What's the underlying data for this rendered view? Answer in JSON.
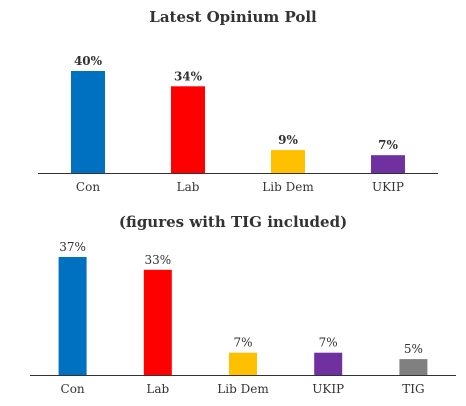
{
  "chart_data": [
    {
      "type": "bar",
      "title": "Latest Opinium Poll",
      "categories": [
        "Con",
        "Lab",
        "Lib Dem",
        "UKIP"
      ],
      "values": [
        40,
        34,
        9,
        7
      ],
      "value_labels": [
        "40%",
        "34%",
        "9%",
        "7%"
      ],
      "colors": [
        "#0070c0",
        "#ff0000",
        "#ffc000",
        "#7030a0"
      ],
      "ylim": [
        0,
        40
      ],
      "grid": false,
      "xlabel": "",
      "ylabel": ""
    },
    {
      "type": "bar",
      "title": "(figures with TIG included)",
      "categories": [
        "Con",
        "Lab",
        "Lib Dem",
        "UKIP",
        "TIG"
      ],
      "values": [
        37,
        33,
        7,
        7,
        5
      ],
      "value_labels": [
        "37%",
        "33%",
        "7%",
        "7%",
        "5%"
      ],
      "colors": [
        "#0070c0",
        "#ff0000",
        "#ffc000",
        "#7030a0",
        "#808080"
      ],
      "ylim": [
        0,
        37
      ],
      "grid": false,
      "xlabel": "",
      "ylabel": ""
    }
  ]
}
